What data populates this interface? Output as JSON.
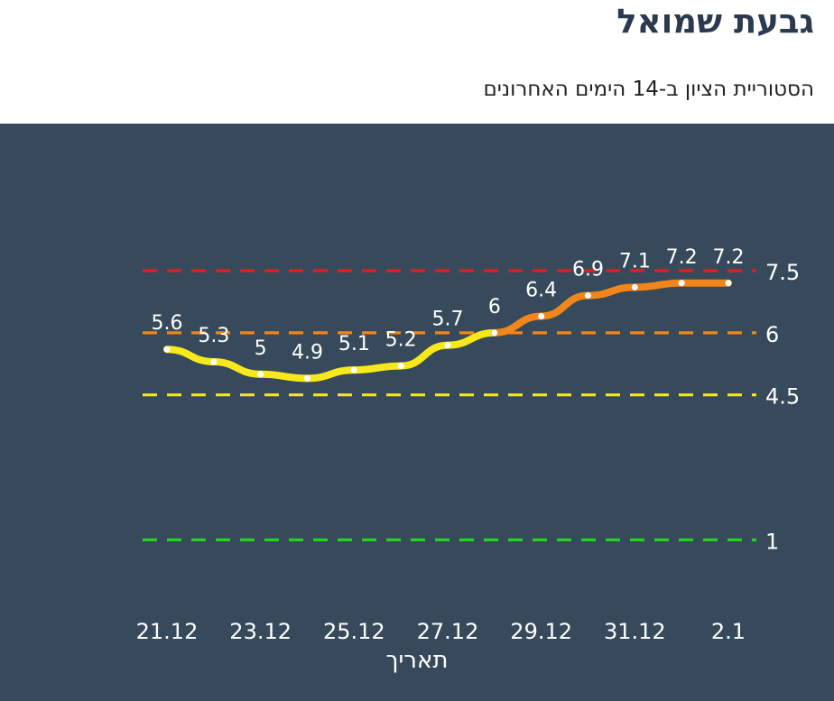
{
  "header": {
    "title": "גבעת שמואל",
    "subtitle": "הסטוריית הציון ב-14 הימים האחרונים"
  },
  "colors": {
    "background": "#374a5b",
    "yellow": "#f7e81b",
    "orange": "#f2861a",
    "red": "#e2201c",
    "green": "#22d41e",
    "text": "#ffffff"
  },
  "chart_data": {
    "type": "line",
    "title": "גבעת שמואל",
    "subtitle": "הסטוריית הציון ב-14 הימים האחרונים",
    "xlabel": "תאריך",
    "ylabel": "",
    "x": [
      "21.12",
      "22.12",
      "23.12",
      "24.12",
      "25.12",
      "26.12",
      "27.12",
      "28.12",
      "29.12",
      "30.12",
      "31.12",
      "1.1",
      "2.1"
    ],
    "xtick_labels": [
      "21.12",
      "23.12",
      "25.12",
      "27.12",
      "29.12",
      "31.12",
      "2.1"
    ],
    "series": [
      {
        "values": [
          5.6,
          5.3,
          5,
          4.9,
          5.1,
          5.2,
          5.7,
          6,
          6.4,
          6.9,
          7.1,
          7.2,
          7.2
        ],
        "labels": [
          "5.6",
          "5.3",
          "5",
          "4.9",
          "5.1",
          "5.2",
          "5.7",
          "6",
          "6.4",
          "6.9",
          "7.1",
          "7.2",
          "7.2"
        ]
      }
    ],
    "threshold_lines": [
      {
        "value": 7.5,
        "label": "7.5",
        "color": "#e2201c"
      },
      {
        "value": 6,
        "label": "6",
        "color": "#f2861a"
      },
      {
        "value": 4.5,
        "label": "4.5",
        "color": "#f7e81b"
      },
      {
        "value": 1,
        "label": "1",
        "color": "#22d41e"
      }
    ],
    "grid": false,
    "legend": "none"
  }
}
